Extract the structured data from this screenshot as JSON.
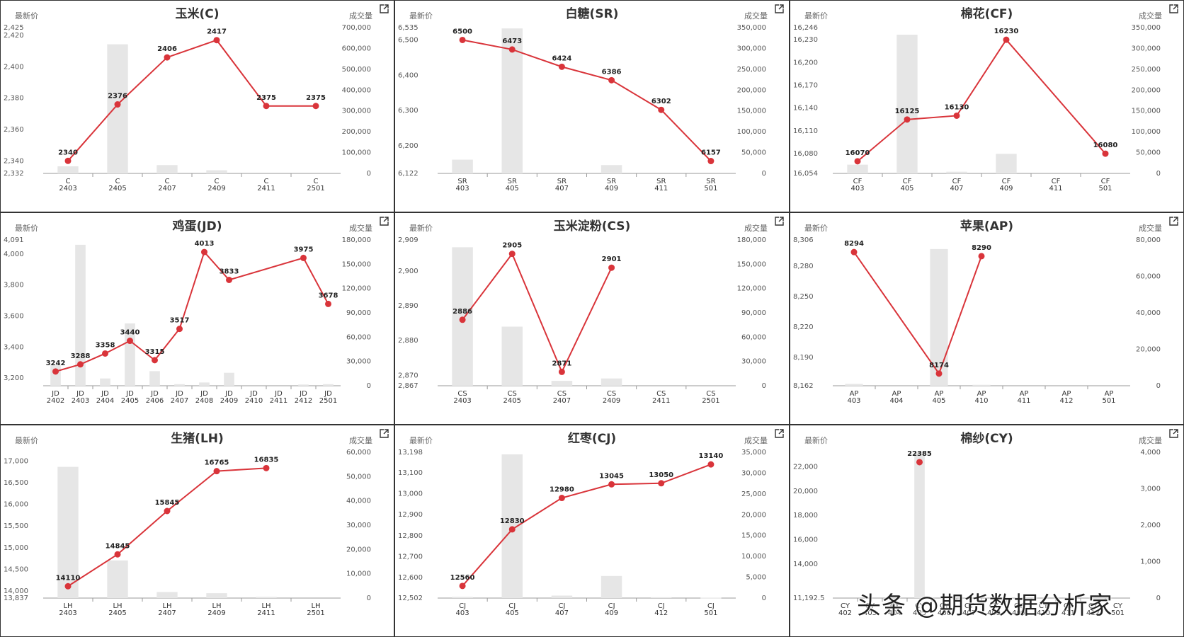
{
  "left_axis_label": "最新价",
  "right_axis_label": "成交量",
  "watermark": "头条 @期货数据分析家",
  "colors": {
    "line": "#d9343a",
    "bar": "#e6e6e6",
    "axis": "#999999"
  },
  "chart_data": [
    {
      "title": "玉米(C)",
      "type": "bar+line",
      "categories": [
        "C\n2403",
        "C\n2405",
        "C\n2407",
        "C\n2409",
        "C\n2411",
        "C\n2501"
      ],
      "price": [
        2340,
        2376,
        2406,
        2417,
        2375,
        2375
      ],
      "volume": [
        34000,
        620000,
        40000,
        15000,
        0,
        0
      ],
      "y_left": {
        "min": 2332,
        "max": 2425,
        "ticks": [
          2332,
          2340,
          2360,
          2380,
          2400,
          2420,
          2425
        ]
      },
      "y_right": {
        "min": 0,
        "max": 700000,
        "ticks": [
          0,
          100000,
          200000,
          300000,
          400000,
          500000,
          600000,
          700000
        ]
      }
    },
    {
      "title": "白糖(SR)",
      "type": "bar+line",
      "categories": [
        "SR\n403",
        "SR\n405",
        "SR\n407",
        "SR\n409",
        "SR\n411",
        "SR\n501"
      ],
      "price": [
        6500,
        6473,
        6424,
        6386,
        6302,
        6157
      ],
      "volume": [
        33000,
        348000,
        0,
        20000,
        0,
        0
      ],
      "y_left": {
        "min": 6122,
        "max": 6535,
        "ticks": [
          6122,
          6200,
          6300,
          6400,
          6500,
          6535
        ]
      },
      "y_right": {
        "min": 0,
        "max": 350000,
        "ticks": [
          0,
          50000,
          100000,
          150000,
          200000,
          250000,
          300000,
          350000
        ]
      }
    },
    {
      "title": "棉花(CF)",
      "type": "bar+line",
      "categories": [
        "CF\n403",
        "CF\n405",
        "CF\n407",
        "CF\n409",
        "CF\n411",
        "CF\n501"
      ],
      "price": [
        16070,
        16125,
        16130,
        16230,
        null,
        16080
      ],
      "volume": [
        21000,
        333000,
        4000,
        47000,
        0,
        0
      ],
      "y_left": {
        "min": 16054,
        "max": 16246,
        "ticks": [
          16054,
          16080,
          16110,
          16140,
          16170,
          16200,
          16230,
          16246
        ]
      },
      "y_right": {
        "min": 0,
        "max": 350000,
        "ticks": [
          0,
          50000,
          100000,
          150000,
          200000,
          250000,
          300000,
          350000
        ]
      }
    },
    {
      "title": "鸡蛋(JD)",
      "type": "bar+line",
      "categories": [
        "JD\n2402",
        "JD\n2403",
        "JD\n2404",
        "JD\n2405",
        "JD\n2406",
        "JD\n2407",
        "JD\n2408",
        "JD\n2409",
        "JD\n2410",
        "JD\n2411",
        "JD\n2412",
        "JD\n2501"
      ],
      "price": [
        3242,
        3288,
        3358,
        3440,
        3315,
        3517,
        4013,
        3833,
        null,
        null,
        3975,
        3678
      ],
      "volume": [
        26000,
        174000,
        9000,
        77000,
        18000,
        2000,
        4000,
        16000,
        0,
        0,
        1500,
        2000
      ],
      "y_left": {
        "min": 3150,
        "max": 4091,
        "ticks": [
          3200,
          3400,
          3600,
          3800,
          4000,
          4091
        ]
      },
      "y_right": {
        "min": 0,
        "max": 180000,
        "ticks": [
          0,
          30000,
          60000,
          90000,
          120000,
          150000,
          180000
        ]
      }
    },
    {
      "title": "玉米淀粉(CS)",
      "type": "bar+line",
      "categories": [
        "CS\n2403",
        "CS\n2405",
        "CS\n2407",
        "CS\n2409",
        "CS\n2411",
        "CS\n2501"
      ],
      "price": [
        2886,
        2905,
        2871,
        2901,
        null,
        null
      ],
      "volume": [
        171000,
        73000,
        6000,
        9000,
        0,
        0
      ],
      "y_left": {
        "min": 2867,
        "max": 2909,
        "ticks": [
          2867,
          2870,
          2880,
          2890,
          2900,
          2909
        ]
      },
      "y_right": {
        "min": 0,
        "max": 180000,
        "ticks": [
          0,
          30000,
          60000,
          90000,
          120000,
          150000,
          180000
        ]
      }
    },
    {
      "title": "苹果(AP)",
      "type": "bar+line",
      "categories": [
        "AP\n403",
        "AP\n404",
        "AP\n405",
        "AP\n410",
        "AP\n411",
        "AP\n412",
        "AP\n501"
      ],
      "price": [
        8294,
        null,
        8174,
        8290,
        null,
        null,
        null
      ],
      "volume": [
        1000,
        0,
        75000,
        500,
        0,
        0,
        0
      ],
      "y_left": {
        "min": 8162,
        "max": 8306,
        "ticks": [
          8162,
          8190,
          8220,
          8250,
          8280,
          8306
        ]
      },
      "y_right": {
        "min": 0,
        "max": 80000,
        "ticks": [
          0,
          20000,
          40000,
          60000,
          80000
        ]
      }
    },
    {
      "title": "生猪(LH)",
      "type": "bar+line",
      "categories": [
        "LH\n2403",
        "LH\n2405",
        "LH\n2407",
        "LH\n2409",
        "LH\n2411",
        "LH\n2501"
      ],
      "price": [
        14110,
        14845,
        15845,
        16765,
        16835,
        null
      ],
      "volume": [
        54000,
        15500,
        2500,
        2000,
        500,
        0
      ],
      "y_left": {
        "min": 13837,
        "max": 17200,
        "ticks": [
          13837,
          14000,
          14500,
          15000,
          15500,
          16000,
          16500,
          17000
        ]
      },
      "y_right": {
        "min": 0,
        "max": 60000,
        "ticks": [
          0,
          10000,
          20000,
          30000,
          40000,
          50000,
          60000
        ]
      }
    },
    {
      "title": "红枣(CJ)",
      "type": "bar+line",
      "categories": [
        "CJ\n403",
        "CJ\n405",
        "CJ\n407",
        "CJ\n409",
        "CJ\n412",
        "CJ\n501"
      ],
      "price": [
        12560,
        12830,
        12980,
        13045,
        13050,
        13140
      ],
      "volume": [
        300,
        34500,
        600,
        5300,
        200,
        100
      ],
      "y_left": {
        "min": 12502,
        "max": 13198,
        "ticks": [
          12502,
          12600,
          12700,
          12800,
          12900,
          13000,
          13100,
          13198
        ]
      },
      "y_right": {
        "min": 0,
        "max": 35000,
        "ticks": [
          0,
          5000,
          10000,
          15000,
          20000,
          25000,
          30000,
          35000
        ]
      }
    },
    {
      "title": "棉纱(CY)",
      "type": "bar+line",
      "categories": [
        "CY\n402",
        "CY\n403",
        "CY\n404",
        "CY\n405",
        "CY\n406",
        "CY\n407",
        "CY\n408",
        "CY\n409",
        "CY\n410",
        "CY\n411",
        "CY\n412",
        "CY\n501"
      ],
      "price": [
        null,
        null,
        null,
        22385,
        null,
        null,
        null,
        null,
        null,
        null,
        null,
        null
      ],
      "volume": [
        0,
        0,
        0,
        4000,
        0,
        0,
        0,
        0,
        0,
        0,
        0,
        0
      ],
      "y_left": {
        "min": 11192.5,
        "max": 23200,
        "ticks": [
          11192.5,
          14000,
          16000,
          18000,
          20000,
          22000
        ]
      },
      "y_right": {
        "min": 0,
        "max": 4000,
        "ticks": [
          0,
          1000,
          2000,
          3000,
          4000
        ]
      }
    }
  ]
}
